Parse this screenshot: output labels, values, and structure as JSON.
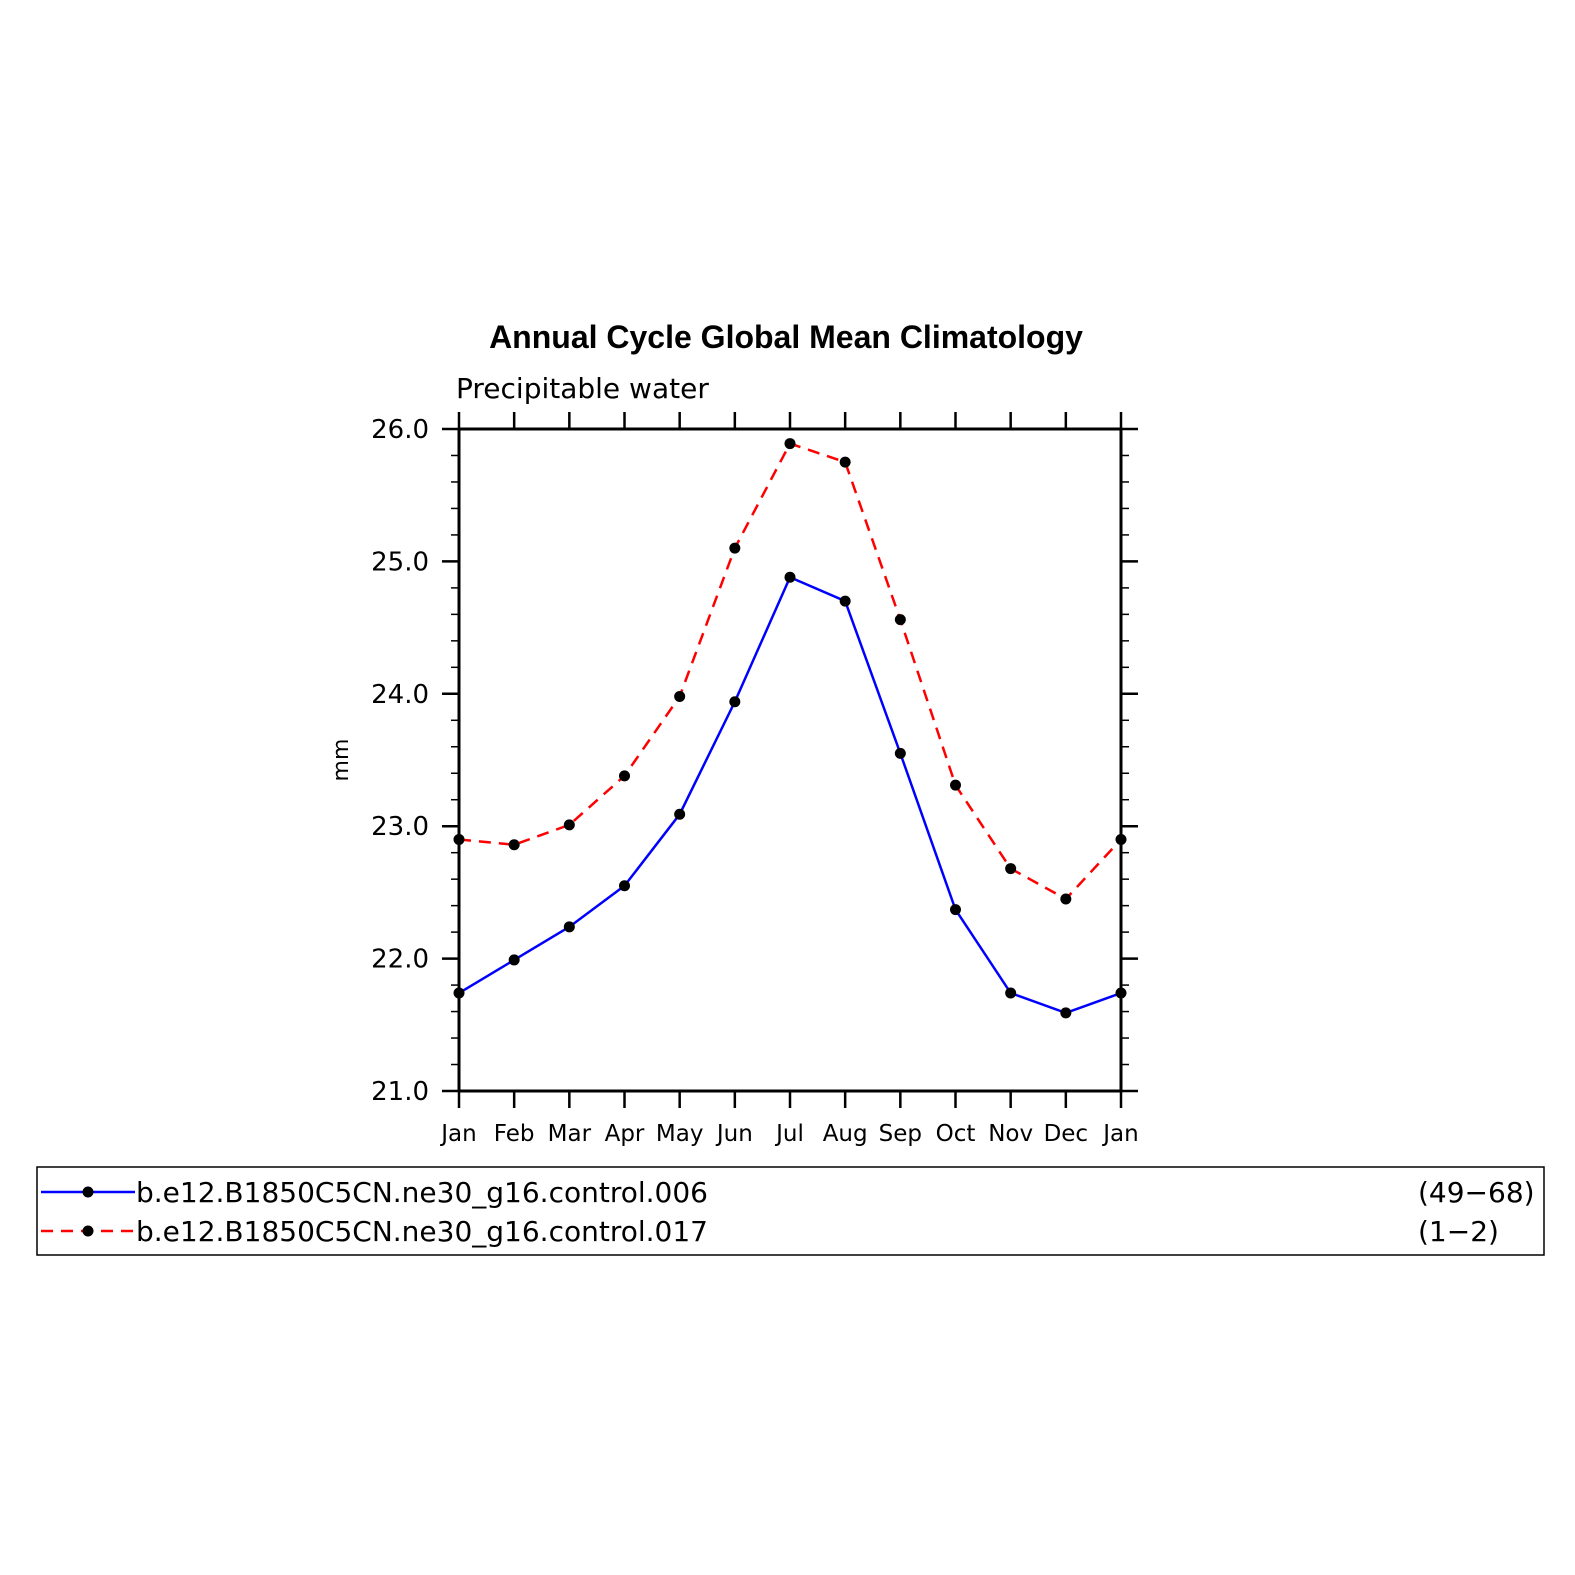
{
  "chart_data": {
    "type": "line",
    "title": "Annual Cycle Global Mean Climatology",
    "subtitle": "Precipitable water",
    "ylabel": "mm",
    "xlabel": "",
    "categories": [
      "Jan",
      "Feb",
      "Mar",
      "Apr",
      "May",
      "Jun",
      "Jul",
      "Aug",
      "Sep",
      "Oct",
      "Nov",
      "Dec",
      "Jan"
    ],
    "ylim": [
      21.0,
      26.0
    ],
    "yticks": [
      "21.0",
      "22.0",
      "23.0",
      "24.0",
      "25.0",
      "26.0"
    ],
    "grid": false,
    "legend_position": "bottom",
    "series": [
      {
        "name": "b.e12.B1850C5CN.ne30_g16.control.006",
        "years": "(49−68)",
        "color": "#0000ff",
        "dash": "solid",
        "values": [
          21.74,
          21.99,
          22.24,
          22.55,
          23.09,
          23.94,
          24.88,
          24.7,
          23.55,
          22.37,
          21.74,
          21.59,
          21.74
        ]
      },
      {
        "name": "b.e12.B1850C5CN.ne30_g16.control.017",
        "years": "(1−2)",
        "color": "#ff0000",
        "dash": "dashed",
        "values": [
          22.9,
          22.86,
          23.01,
          23.38,
          23.98,
          25.1,
          25.89,
          25.75,
          24.56,
          23.31,
          22.68,
          22.45,
          22.9
        ]
      }
    ],
    "marker_color": "#000000"
  }
}
